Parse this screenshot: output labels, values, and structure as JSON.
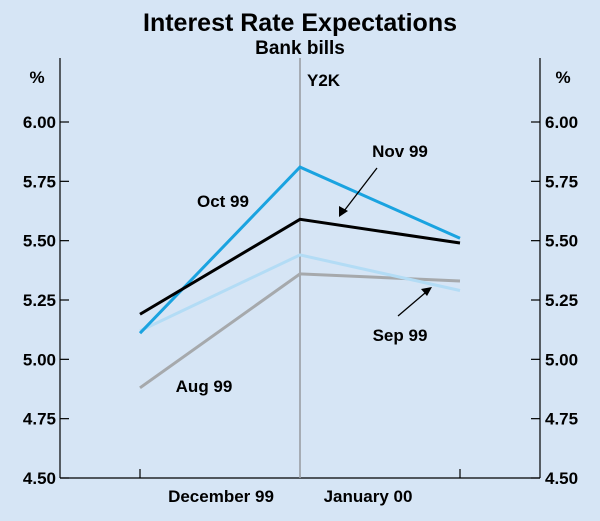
{
  "chart_data": {
    "type": "line",
    "title": "Interest Rate Expectations",
    "subtitle": "Bank bills",
    "y_unit_left": "%",
    "y_unit_right": "%",
    "ylim": [
      4.5,
      6.0
    ],
    "yticks": [
      6.0,
      5.75,
      5.5,
      5.25,
      5.0,
      4.75,
      4.5
    ],
    "ytick_labels": [
      "6.00",
      "5.75",
      "5.50",
      "5.25",
      "5.00",
      "4.75",
      "4.50"
    ],
    "categories": [
      "December 99",
      "January 00"
    ],
    "x": [
      0,
      1,
      2
    ],
    "series": [
      {
        "name": "Aug 99",
        "color": "#a6a9ac",
        "values": [
          4.88,
          5.36,
          5.33
        ]
      },
      {
        "name": "Sep 99",
        "color": "#b3dcf5",
        "values": [
          5.12,
          5.44,
          5.29
        ]
      },
      {
        "name": "Oct 99",
        "color": "#1aa3e0",
        "values": [
          5.11,
          5.81,
          5.51
        ]
      },
      {
        "name": "Nov 99",
        "color": "#000000",
        "values": [
          5.19,
          5.59,
          5.49
        ]
      }
    ],
    "annotation": "Y2K",
    "annotation_line_color": "#9a9ea3"
  }
}
